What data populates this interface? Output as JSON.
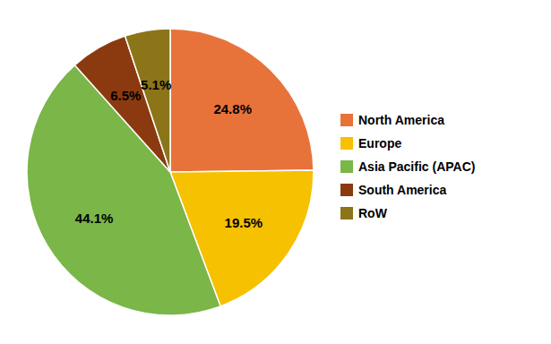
{
  "chart_data": {
    "type": "pie",
    "categories": [
      "North America",
      "Europe",
      "Asia Pacific (APAC)",
      "South America",
      "RoW"
    ],
    "values": [
      24.8,
      19.5,
      44.1,
      6.5,
      5.1
    ],
    "value_labels": [
      "24.8%",
      "19.5%",
      "44.1%",
      "6.5%",
      "5.1%"
    ],
    "colors": [
      "#E8733A",
      "#F5C100",
      "#7AB648",
      "#8B3A0F",
      "#8B7518"
    ],
    "data_labels": true,
    "legend": "right"
  }
}
